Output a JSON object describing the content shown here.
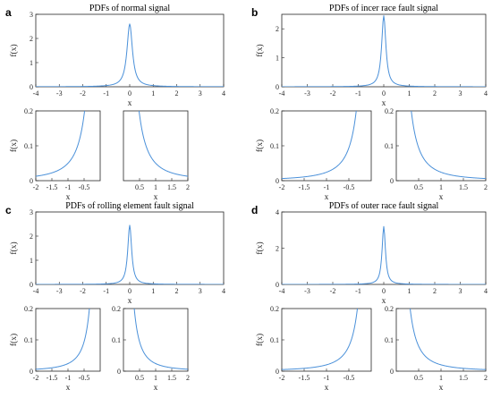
{
  "colors": {
    "curve": "#4a90d9"
  },
  "chart_data": [
    {
      "panel_label": "a",
      "main": {
        "type": "line",
        "title": "PDFs of normal signal",
        "xlabel": "x",
        "ylabel": "f(x)",
        "xlim": [
          -4,
          4
        ],
        "ylim": [
          0,
          3
        ],
        "xticks": [
          "-4",
          "-3",
          "-2",
          "-1",
          "0",
          "1",
          "2",
          "3",
          "4"
        ],
        "yticks": [
          "0",
          "1",
          "2",
          "3"
        ],
        "peak": 2.6,
        "width": 0.14,
        "series": [
          {
            "x": [
              -4,
              -1,
              -0.5,
              -0.3,
              -0.2,
              -0.1,
              0,
              0.1,
              0.2,
              0.3,
              0.5,
              1,
              4
            ],
            "y": [
              0,
              0.01,
              0.05,
              0.28,
              0.87,
              1.98,
              2.6,
              1.98,
              0.87,
              0.28,
              0.05,
              0.01,
              0
            ]
          }
        ]
      },
      "left_zoom": {
        "type": "line",
        "xlabel": "x",
        "ylabel": "f(x)",
        "xlim": [
          -2,
          0
        ],
        "ylim": [
          0,
          0.2
        ],
        "xticks": [
          "-2",
          "-1.5",
          "-1",
          "-0.5"
        ],
        "yticks": [
          "0",
          "0.1",
          "0.2"
        ]
      },
      "right_zoom": {
        "type": "line",
        "xlabel": "x",
        "xlim": [
          0,
          2
        ],
        "ylim": [
          0,
          0.2
        ],
        "xticks": [
          "0.5",
          "1",
          "1.5",
          "2"
        ],
        "yticks": []
      }
    },
    {
      "panel_label": "b",
      "main": {
        "type": "line",
        "title": "PDFs of incer race fault signal",
        "xlabel": "x",
        "ylabel": "f(x)",
        "xlim": [
          -4,
          4
        ],
        "ylim": [
          0,
          2.5
        ],
        "xticks": [
          "-4",
          "-3",
          "-2",
          "-1",
          "0",
          "1",
          "2",
          "3",
          "4"
        ],
        "yticks": [
          "0",
          "1",
          "2"
        ],
        "peak": 2.45,
        "width": 0.1,
        "series": [
          {
            "x": [
              -4,
              -2,
              -1,
              -0.5,
              -0.3,
              -0.1,
              0,
              0.1,
              0.3,
              0.5,
              1,
              2,
              4
            ],
            "y": [
              0.01,
              0.02,
              0.05,
              0.14,
              0.3,
              1.22,
              2.45,
              1.22,
              0.3,
              0.14,
              0.05,
              0.02,
              0.01
            ]
          }
        ]
      },
      "left_zoom": {
        "type": "line",
        "xlabel": "x",
        "ylabel": "f(x)",
        "xlim": [
          -2,
          0
        ],
        "ylim": [
          0,
          0.2
        ],
        "xticks": [
          "-2",
          "-1.5",
          "-1",
          "-0.5"
        ],
        "yticks": [
          "0",
          "0.1",
          "0.2"
        ]
      },
      "right_zoom": {
        "type": "line",
        "xlabel": "x",
        "xlim": [
          0,
          2
        ],
        "ylim": [
          0,
          0.2
        ],
        "xticks": [
          "0.5",
          "1",
          "1.5",
          "2"
        ],
        "yticks": [
          "0",
          "0.1",
          "0.2"
        ]
      }
    },
    {
      "panel_label": "c",
      "main": {
        "type": "line",
        "title": "PDFs of rolling element fault signal",
        "xlabel": "x",
        "ylabel": "f(x)",
        "xlim": [
          -4,
          4
        ],
        "ylim": [
          0,
          3
        ],
        "xticks": [
          "-4",
          "-3",
          "-2",
          "-1",
          "0",
          "1",
          "2",
          "3",
          "4"
        ],
        "yticks": [
          "0",
          "1",
          "2",
          "3"
        ],
        "peak": 2.45,
        "width": 0.1,
        "series": [
          {
            "x": [
              -4,
              -2,
              -1,
              -0.5,
              -0.3,
              -0.1,
              0,
              0.1,
              0.3,
              0.5,
              1,
              2,
              4
            ],
            "y": [
              0.01,
              0.02,
              0.05,
              0.14,
              0.3,
              1.22,
              2.45,
              1.22,
              0.3,
              0.14,
              0.05,
              0.02,
              0.01
            ]
          }
        ]
      },
      "left_zoom": {
        "type": "line",
        "xlabel": "x",
        "ylabel": "f(x)",
        "xlim": [
          -2,
          0
        ],
        "ylim": [
          0,
          0.2
        ],
        "xticks": [
          "-2",
          "-1.5",
          "-1",
          "-0.5"
        ],
        "yticks": [
          "0",
          "0.1",
          "0.2"
        ]
      },
      "right_zoom": {
        "type": "line",
        "xlabel": "x",
        "xlim": [
          0,
          2
        ],
        "ylim": [
          0,
          0.2
        ],
        "xticks": [
          "0.5",
          "1",
          "1.5",
          "2"
        ],
        "yticks": [
          "0",
          "0.1",
          "0.2"
        ]
      }
    },
    {
      "panel_label": "d",
      "main": {
        "type": "line",
        "title": "PDFs of outer race fault signal",
        "xlabel": "x",
        "ylabel": "f(x)",
        "xlim": [
          -4,
          4
        ],
        "ylim": [
          0,
          4
        ],
        "xticks": [
          "-4",
          "-3",
          "-2",
          "-1",
          "0",
          "1",
          "2",
          "3",
          "4"
        ],
        "yticks": [
          "0",
          "2",
          "4"
        ],
        "peak": 3.2,
        "width": 0.08,
        "series": [
          {
            "x": [
              -4,
              -2,
              -1,
              -0.5,
              -0.3,
              -0.1,
              0,
              0.1,
              0.3,
              0.5,
              1,
              2,
              4
            ],
            "y": [
              0.01,
              0.01,
              0.04,
              0.1,
              0.23,
              1.25,
              3.2,
              1.25,
              0.23,
              0.1,
              0.04,
              0.01,
              0.01
            ]
          }
        ]
      },
      "left_zoom": {
        "type": "line",
        "xlabel": "x",
        "ylabel": "f(x)",
        "xlim": [
          -2,
          0
        ],
        "ylim": [
          0,
          0.2
        ],
        "xticks": [
          "-2",
          "-1.5",
          "-1",
          "-0.5"
        ],
        "yticks": [
          "0",
          "0.1",
          "0.2"
        ]
      },
      "right_zoom": {
        "type": "line",
        "xlabel": "x",
        "xlim": [
          0,
          2
        ],
        "ylim": [
          0,
          0.2
        ],
        "xticks": [
          "0.5",
          "1",
          "1.5",
          "2"
        ],
        "yticks": [
          "0",
          "0.1",
          "0.2"
        ]
      }
    }
  ]
}
